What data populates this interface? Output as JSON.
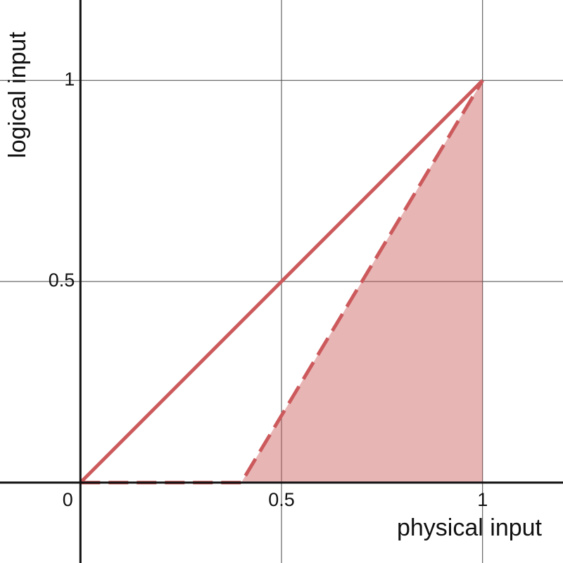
{
  "chart_data": {
    "type": "line",
    "x_label": "physical input",
    "y_label": "logical input",
    "xlim": [
      -0.2,
      1.2
    ],
    "ylim": [
      -0.2,
      1.2
    ],
    "xticks": [
      0,
      0.5,
      1
    ],
    "yticks": [
      0.5,
      1
    ],
    "grid": true,
    "series": [
      {
        "color": "#cc5a5c",
        "style": "solid",
        "fill": false,
        "x": [
          0,
          1
        ],
        "values": [
          0,
          1
        ]
      },
      {
        "color": "#cc5a5c",
        "style": "dashed",
        "fill": true,
        "x": [
          0,
          0.4,
          1
        ],
        "values": [
          0,
          0,
          1
        ]
      }
    ]
  }
}
